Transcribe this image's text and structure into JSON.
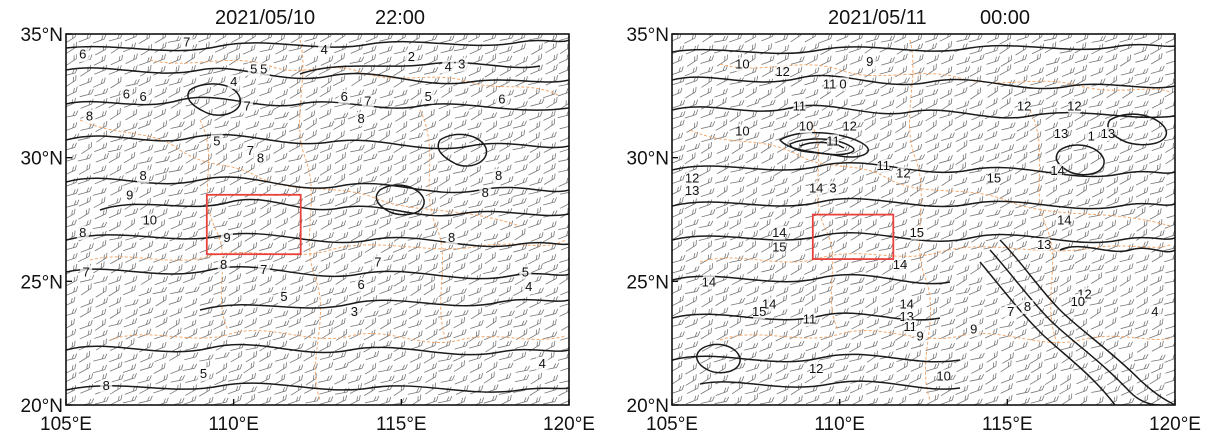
{
  "panels": [
    {
      "title_date": "2021/05/10",
      "title_time": "22:00",
      "x_ticks": [
        {
          "lon": 105,
          "label": "105°E"
        },
        {
          "lon": 110,
          "label": "110°E"
        },
        {
          "lon": 115,
          "label": "115°E"
        },
        {
          "lon": 120,
          "label": "120°E"
        }
      ],
      "y_ticks": [
        {
          "lat": 35,
          "label": "35°N"
        },
        {
          "lat": 30,
          "label": "30°N"
        },
        {
          "lat": 25,
          "label": "25°N"
        },
        {
          "lat": 20,
          "label": "20°N"
        }
      ],
      "lon_range": [
        105,
        120
      ],
      "lat_range": [
        20,
        35
      ],
      "region_box": {
        "lon": [
          109.2,
          112.0
        ],
        "lat": [
          26.1,
          28.5
        ]
      },
      "contour_labels": [
        {
          "text": "7",
          "lon": 108.6,
          "lat": 34.5
        },
        {
          "text": "6",
          "lon": 105.5,
          "lat": 34.0
        },
        {
          "text": "4",
          "lon": 112.7,
          "lat": 34.2
        },
        {
          "text": "2",
          "lon": 115.3,
          "lat": 33.9
        },
        {
          "text": "4",
          "lon": 116.4,
          "lat": 33.5
        },
        {
          "text": "3",
          "lon": 116.8,
          "lat": 33.6
        },
        {
          "text": "5",
          "lon": 110.6,
          "lat": 33.4
        },
        {
          "text": "5",
          "lon": 110.9,
          "lat": 33.4
        },
        {
          "text": "4",
          "lon": 110.0,
          "lat": 32.9
        },
        {
          "text": "6",
          "lon": 106.8,
          "lat": 32.4
        },
        {
          "text": "6",
          "lon": 107.3,
          "lat": 32.3
        },
        {
          "text": "6",
          "lon": 113.3,
          "lat": 32.3
        },
        {
          "text": "7",
          "lon": 114.0,
          "lat": 32.1
        },
        {
          "text": "5",
          "lon": 115.8,
          "lat": 32.3
        },
        {
          "text": "6",
          "lon": 118.0,
          "lat": 32.2
        },
        {
          "text": "8",
          "lon": 105.7,
          "lat": 31.5
        },
        {
          "text": "7",
          "lon": 110.4,
          "lat": 31.9
        },
        {
          "text": "8",
          "lon": 113.8,
          "lat": 31.4
        },
        {
          "text": "5",
          "lon": 109.5,
          "lat": 30.5
        },
        {
          "text": "7",
          "lon": 110.5,
          "lat": 30.1
        },
        {
          "text": "8",
          "lon": 110.8,
          "lat": 29.8
        },
        {
          "text": "8",
          "lon": 107.3,
          "lat": 29.1
        },
        {
          "text": "8",
          "lon": 117.9,
          "lat": 29.1
        },
        {
          "text": "9",
          "lon": 106.9,
          "lat": 28.3
        },
        {
          "text": "8",
          "lon": 117.5,
          "lat": 28.4
        },
        {
          "text": "10",
          "lon": 107.5,
          "lat": 27.3
        },
        {
          "text": "9",
          "lon": 109.8,
          "lat": 26.6
        },
        {
          "text": "8",
          "lon": 105.5,
          "lat": 26.8
        },
        {
          "text": "8",
          "lon": 116.5,
          "lat": 26.6
        },
        {
          "text": "8",
          "lon": 109.7,
          "lat": 25.5
        },
        {
          "text": "7",
          "lon": 110.9,
          "lat": 25.3
        },
        {
          "text": "7",
          "lon": 114.3,
          "lat": 25.6
        },
        {
          "text": "7",
          "lon": 105.6,
          "lat": 25.2
        },
        {
          "text": "5",
          "lon": 118.7,
          "lat": 25.2
        },
        {
          "text": "6",
          "lon": 113.8,
          "lat": 24.7
        },
        {
          "text": "4",
          "lon": 118.8,
          "lat": 24.6
        },
        {
          "text": "5",
          "lon": 111.5,
          "lat": 24.2
        },
        {
          "text": "3",
          "lon": 113.6,
          "lat": 23.6
        },
        {
          "text": "4",
          "lon": 119.2,
          "lat": 21.5
        },
        {
          "text": "5",
          "lon": 109.1,
          "lat": 21.1
        },
        {
          "text": "8",
          "lon": 106.2,
          "lat": 20.6
        }
      ]
    },
    {
      "title_date": "2021/05/11",
      "title_time": "00:00",
      "x_ticks": [
        {
          "lon": 105,
          "label": "105°E"
        },
        {
          "lon": 110,
          "label": "110°E"
        },
        {
          "lon": 115,
          "label": "115°E"
        },
        {
          "lon": 120,
          "label": "120°E"
        }
      ],
      "y_ticks": [
        {
          "lat": 35,
          "label": "35°N"
        },
        {
          "lat": 30,
          "label": "30°N"
        },
        {
          "lat": 25,
          "label": "25°N"
        },
        {
          "lat": 20,
          "label": "20°N"
        }
      ],
      "lon_range": [
        105,
        120
      ],
      "lat_range": [
        20,
        35
      ],
      "region_box": {
        "lon": [
          109.2,
          111.6
        ],
        "lat": [
          25.9,
          27.7
        ]
      },
      "contour_labels": [
        {
          "text": "10",
          "lon": 107.1,
          "lat": 33.6
        },
        {
          "text": "12",
          "lon": 108.3,
          "lat": 33.3
        },
        {
          "text": "9",
          "lon": 110.9,
          "lat": 33.7
        },
        {
          "text": "11",
          "lon": 109.7,
          "lat": 32.8
        },
        {
          "text": "0",
          "lon": 110.1,
          "lat": 32.8
        },
        {
          "text": "11",
          "lon": 108.8,
          "lat": 31.9
        },
        {
          "text": "12",
          "lon": 115.5,
          "lat": 31.9
        },
        {
          "text": "12",
          "lon": 117.0,
          "lat": 31.9
        },
        {
          "text": "10",
          "lon": 107.1,
          "lat": 30.9
        },
        {
          "text": "10",
          "lon": 109.0,
          "lat": 31.1
        },
        {
          "text": "12",
          "lon": 110.3,
          "lat": 31.1
        },
        {
          "text": "13",
          "lon": 116.6,
          "lat": 30.8
        },
        {
          "text": "1",
          "lon": 117.5,
          "lat": 30.7
        },
        {
          "text": "13",
          "lon": 118.0,
          "lat": 30.8
        },
        {
          "text": "11",
          "lon": 109.8,
          "lat": 30.5
        },
        {
          "text": "12",
          "lon": 105.6,
          "lat": 29.0
        },
        {
          "text": "13",
          "lon": 105.6,
          "lat": 28.5
        },
        {
          "text": "11",
          "lon": 111.3,
          "lat": 29.5
        },
        {
          "text": "12",
          "lon": 111.9,
          "lat": 29.2
        },
        {
          "text": "14",
          "lon": 109.3,
          "lat": 28.6
        },
        {
          "text": "3",
          "lon": 109.8,
          "lat": 28.6
        },
        {
          "text": "15",
          "lon": 114.6,
          "lat": 29.0
        },
        {
          "text": "14",
          "lon": 116.5,
          "lat": 29.3
        },
        {
          "text": "14",
          "lon": 108.2,
          "lat": 26.8
        },
        {
          "text": "15",
          "lon": 108.2,
          "lat": 26.2
        },
        {
          "text": "15",
          "lon": 112.3,
          "lat": 26.8
        },
        {
          "text": "14",
          "lon": 116.7,
          "lat": 27.3
        },
        {
          "text": "13",
          "lon": 116.1,
          "lat": 26.3
        },
        {
          "text": "14",
          "lon": 111.8,
          "lat": 25.5
        },
        {
          "text": "14",
          "lon": 106.1,
          "lat": 24.8
        },
        {
          "text": "14",
          "lon": 107.9,
          "lat": 23.9
        },
        {
          "text": "15",
          "lon": 107.6,
          "lat": 23.6
        },
        {
          "text": "11",
          "lon": 109.1,
          "lat": 23.3
        },
        {
          "text": "14",
          "lon": 112.0,
          "lat": 23.9
        },
        {
          "text": "13",
          "lon": 112.0,
          "lat": 23.4
        },
        {
          "text": "11",
          "lon": 112.1,
          "lat": 23.0
        },
        {
          "text": "9",
          "lon": 112.4,
          "lat": 22.6
        },
        {
          "text": "9",
          "lon": 114.0,
          "lat": 22.9
        },
        {
          "text": "7",
          "lon": 115.1,
          "lat": 23.6
        },
        {
          "text": "8",
          "lon": 115.6,
          "lat": 23.8
        },
        {
          "text": "12",
          "lon": 117.3,
          "lat": 24.3
        },
        {
          "text": "10",
          "lon": 117.1,
          "lat": 24.0
        },
        {
          "text": "4",
          "lon": 119.4,
          "lat": 23.6
        },
        {
          "text": "12",
          "lon": 109.3,
          "lat": 21.3
        },
        {
          "text": "10",
          "lon": 113.1,
          "lat": 21.0
        }
      ]
    }
  ]
}
